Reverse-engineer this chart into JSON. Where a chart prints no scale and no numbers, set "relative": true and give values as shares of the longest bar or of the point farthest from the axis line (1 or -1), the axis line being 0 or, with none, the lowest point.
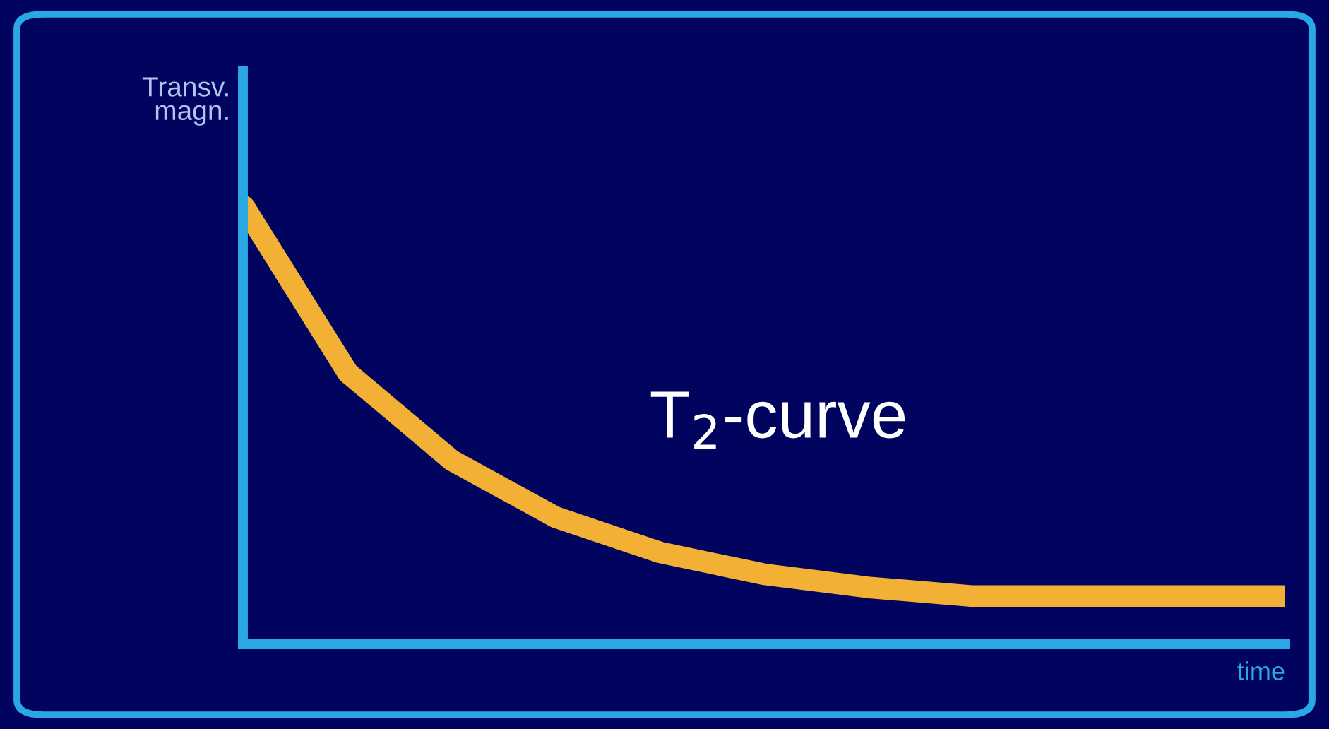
{
  "chart_data": {
    "type": "line",
    "relative": true,
    "xlabel": "time",
    "ylabel": "Transv.\nmagn.",
    "annotations": [
      "T$_{2}$-curve"
    ],
    "categories": [
      null,
      null,
      null,
      null,
      null,
      null,
      null,
      null,
      null,
      null,
      null
    ],
    "series": [
      {
        "color": "#f2b134",
        "values": [
          1,
          0.62,
          0.42,
          0.29,
          0.21,
          0.16,
          0.13,
          0.11,
          0.11,
          0.11,
          0.11
        ]
      }
    ],
    "grid": false,
    "legend": false,
    "line_style": "solid",
    "marker": "none"
  }
}
